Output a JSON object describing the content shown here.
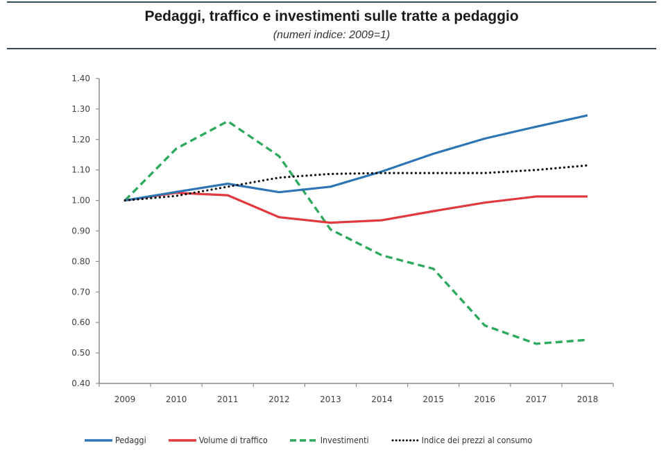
{
  "header": {
    "title": "Pedaggi, traffico e investimenti sulle tratte a pedaggio",
    "subtitle": "(numeri indice: 2009=1)"
  },
  "chart_data": {
    "type": "line",
    "title": "Pedaggi, traffico e investimenti sulle tratte a pedaggio",
    "subtitle": "(numeri indice: 2009=1)",
    "xlabel": "",
    "ylabel": "",
    "categories": [
      "2009",
      "2010",
      "2011",
      "2012",
      "2013",
      "2014",
      "2015",
      "2016",
      "2017",
      "2018"
    ],
    "ylim": [
      0.4,
      1.4
    ],
    "yticks": [
      "0.40",
      "0.50",
      "0.60",
      "0.70",
      "0.80",
      "0.90",
      "1.00",
      "1.10",
      "1.20",
      "1.30",
      "1.40"
    ],
    "grid": false,
    "legend_position": "bottom",
    "series": [
      {
        "name": "Pedaggi",
        "color": "#2e75b6",
        "style": "solid",
        "values": [
          1.0,
          1.028,
          1.055,
          1.027,
          1.045,
          1.095,
          1.153,
          1.203,
          1.242,
          1.279
        ]
      },
      {
        "name": "Volume di traffico",
        "color": "#e0393e",
        "style": "solid",
        "values": [
          1.0,
          1.025,
          1.017,
          0.945,
          0.927,
          0.935,
          0.965,
          0.993,
          1.013,
          1.013
        ]
      },
      {
        "name": "Investimenti",
        "color": "#2eaa5e",
        "style": "dashed",
        "values": [
          1.0,
          1.17,
          1.26,
          1.145,
          0.905,
          0.82,
          0.776,
          0.59,
          0.53,
          0.543
        ]
      },
      {
        "name": "Indice dei prezzi al consumo",
        "color": "#111111",
        "style": "dotted",
        "values": [
          1.0,
          1.015,
          1.045,
          1.075,
          1.087,
          1.09,
          1.09,
          1.09,
          1.1,
          1.115
        ]
      }
    ]
  }
}
